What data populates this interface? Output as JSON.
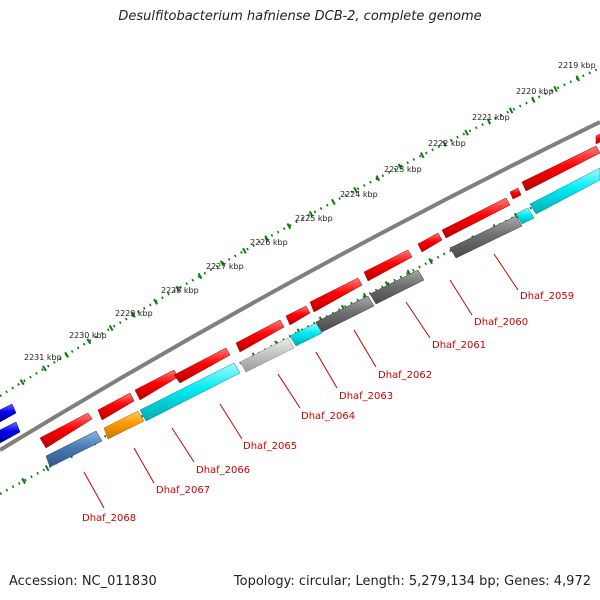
{
  "title": "Desulfitobacterium hafniense DCB-2, complete genome",
  "footer": {
    "accession": "Accession: NC_011830",
    "genome_info": "Topology: circular; Length: 5,279,134 bp; Genes: 4,972"
  },
  "scale_ticks": [
    "2219 kbp",
    "2220 kbp",
    "2221 kbp",
    "2222 kbp",
    "2223 kbp",
    "2224 kbp",
    "2225 kbp",
    "2226 kbp",
    "2227 kbp",
    "2228 kbp",
    "2229 kbp",
    "2230 kbp",
    "2231 kbp"
  ],
  "gene_labels": [
    "Dhaf_2059",
    "Dhaf_2060",
    "Dhaf_2061",
    "Dhaf_2062",
    "Dhaf_2063",
    "Dhaf_2064",
    "Dhaf_2065",
    "Dhaf_2066",
    "Dhaf_2067",
    "Dhaf_2068"
  ],
  "colors": {
    "forward_strand": "#ff0000",
    "reverse_cyan": "#00e5ee",
    "reverse_gray": "#6e6e6e",
    "reverse_lightgray": "#c4c4c4",
    "reverse_orange": "#ff9a00",
    "reverse_steelblue": "#4a7ab5",
    "other_blue": "#0000ee",
    "backbone": "#7f7f7f",
    "scale_dots": "#0a7d0a",
    "label_text": "#cc0000"
  }
}
